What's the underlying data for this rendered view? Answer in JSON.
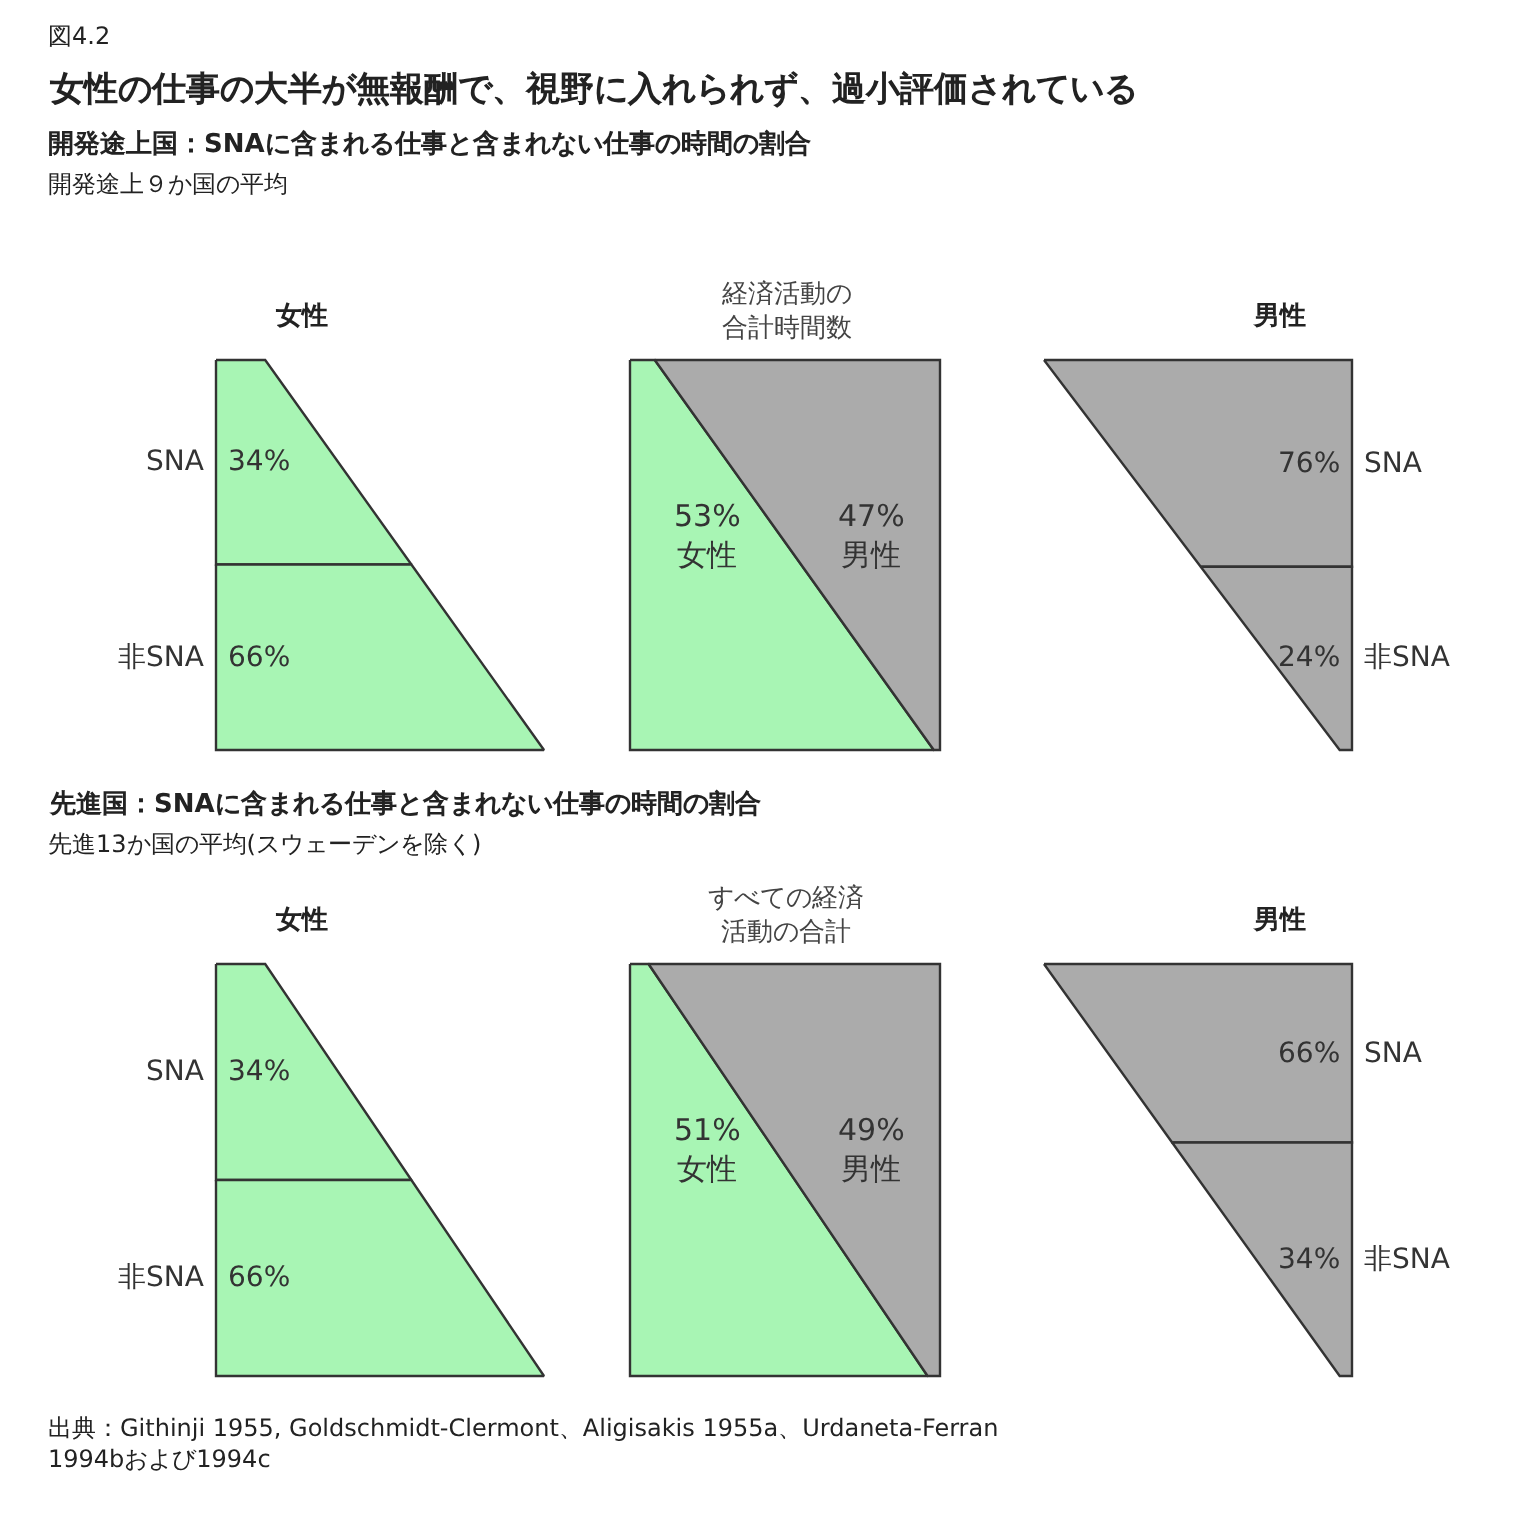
{
  "chart_data": [
    {
      "type": "other",
      "title": "女性",
      "categories": [
        "SNA",
        "非SNA"
      ],
      "values": [
        34,
        66
      ],
      "value_labels": [
        "34%",
        "66%"
      ],
      "color": "#a8f5b4",
      "annotations": [
        "図4.2",
        "女性の仕事の大半が無報酬で、視野に入れられず、過小評価されている",
        "開発途上国：SNAに含まれる仕事と含まれない仕事の時間の割合",
        "開発途上９か国の平均"
      ]
    },
    {
      "type": "other",
      "title": "経済活動の合計時間数",
      "categories": [
        "女性",
        "男性"
      ],
      "values": [
        53,
        47
      ],
      "value_labels": [
        "53%",
        "47%"
      ],
      "colors": [
        "#a8f5b4",
        "#ababab"
      ]
    },
    {
      "type": "other",
      "title": "男性",
      "categories": [
        "SNA",
        "非SNA"
      ],
      "values": [
        76,
        24
      ],
      "value_labels": [
        "76%",
        "24%"
      ],
      "color": "#ababab"
    },
    {
      "type": "other",
      "title": "女性",
      "categories": [
        "SNA",
        "非SNA"
      ],
      "values": [
        34,
        66
      ],
      "value_labels": [
        "34%",
        "66%"
      ],
      "color": "#a8f5b4",
      "annotations": [
        "先進国：SNAに含まれる仕事と含まれない仕事の時間の割合",
        "先進13か国の平均(スウェーデンを除く)"
      ]
    },
    {
      "type": "other",
      "title": "すべての経済活動の合計",
      "categories": [
        "女性",
        "男性"
      ],
      "values": [
        51,
        49
      ],
      "value_labels": [
        "51%",
        "49%"
      ],
      "colors": [
        "#a8f5b4",
        "#ababab"
      ]
    },
    {
      "type": "other",
      "title": "男性",
      "categories": [
        "SNA",
        "非SNA"
      ],
      "values": [
        66,
        34
      ],
      "value_labels": [
        "66%",
        "34%"
      ],
      "color": "#ababab",
      "annotations": [
        "出典：Githinji 1955, Goldschmidt-Clermont、Aligisakis 1955a、Urdaneta-Ferran\n1994bおよび1994c"
      ]
    }
  ]
}
